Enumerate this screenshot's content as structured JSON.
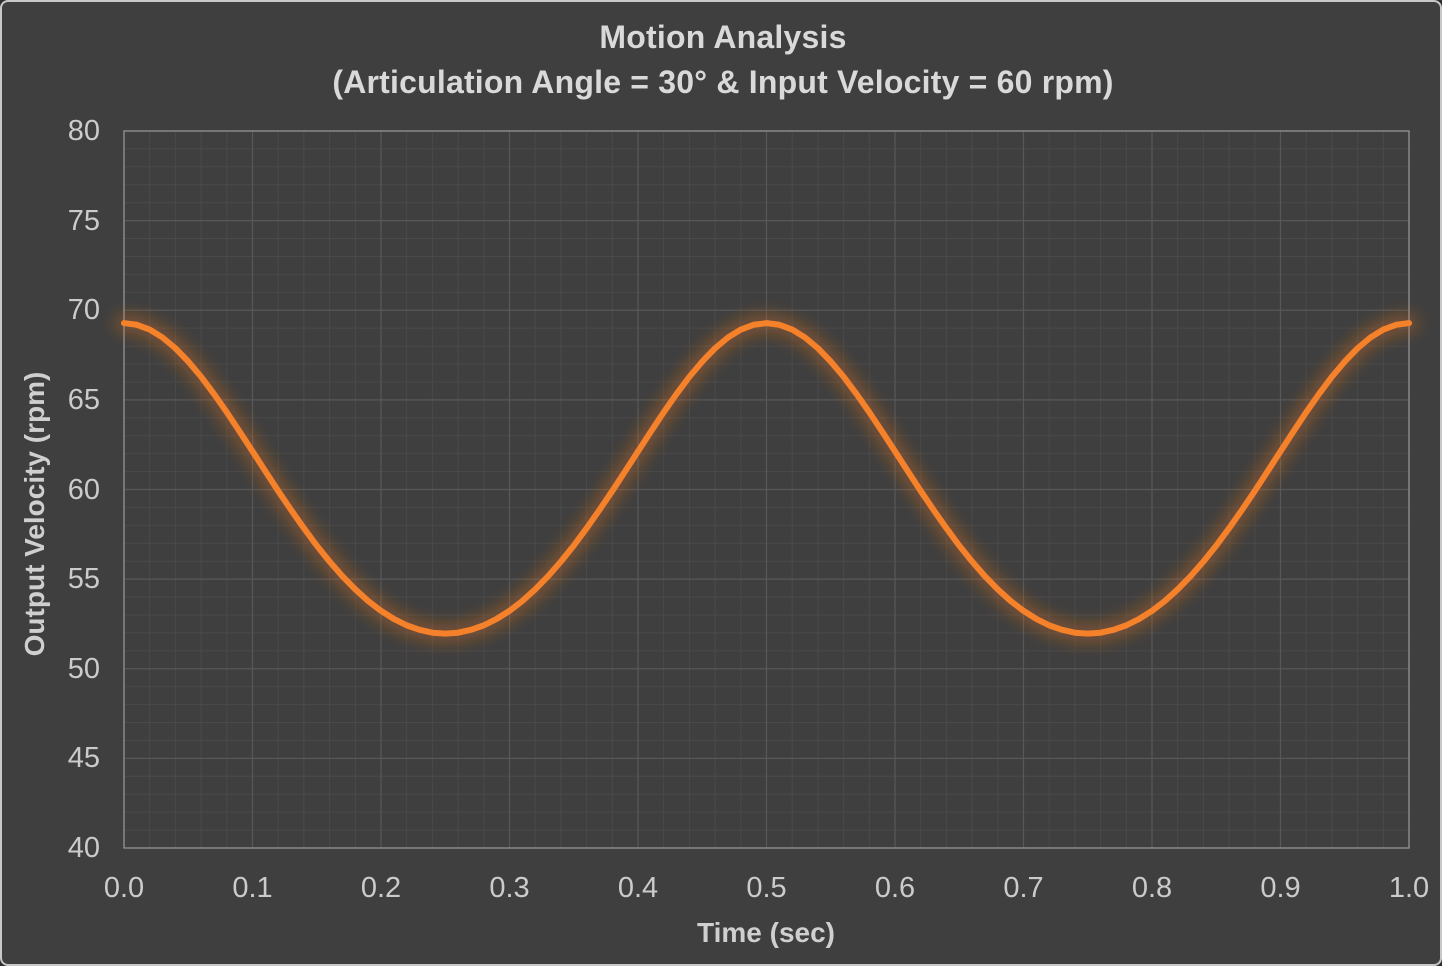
{
  "frame": {
    "background": "#3F3F3F",
    "border_color": "#C8C8C8"
  },
  "colors": {
    "background": "#3F3F3F",
    "plot_border": "#8F8F8F",
    "grid_major": "#585858",
    "grid_minor": "#4A4A4A",
    "tick_text": "#CBCBCB",
    "title_text": "#D9D9D9",
    "curve": "#F5822B",
    "curve_glow": "#DD6E1B"
  },
  "chart_data": {
    "type": "line",
    "title": "Motion Analysis",
    "subtitle": "(Articulation Angle = 30° & Input Velocity = 60 rpm)",
    "xlabel": "Time (sec)",
    "ylabel": "Output Velocity (rpm)",
    "xlim": [
      0.0,
      1.0
    ],
    "ylim": [
      40,
      80
    ],
    "x_tick_labels": [
      "0.0",
      "0.1",
      "0.2",
      "0.3",
      "0.4",
      "0.5",
      "0.6",
      "0.7",
      "0.8",
      "0.9",
      "1.0"
    ],
    "y_tick_labels": [
      "80",
      "75",
      "70",
      "65",
      "60",
      "55",
      "50",
      "45",
      "40"
    ],
    "x_major_step": 0.1,
    "x_minor_step": 0.02,
    "y_major_step": 5,
    "y_minor_step": 1,
    "grid": "major+minor",
    "legend_position": "none",
    "series": [
      {
        "name": "Output Velocity",
        "color": "#F5822B",
        "x_start": 0.0,
        "x_step": 0.01,
        "values": [
          69.28,
          69.19,
          68.92,
          68.48,
          67.88,
          67.14,
          66.29,
          65.33,
          64.31,
          63.23,
          62.13,
          61.02,
          59.92,
          58.86,
          57.84,
          56.87,
          55.98,
          55.16,
          54.43,
          53.78,
          53.23,
          52.78,
          52.42,
          52.17,
          52.01,
          51.96,
          52.01,
          52.17,
          52.42,
          52.78,
          53.23,
          53.78,
          54.43,
          55.16,
          55.98,
          56.87,
          57.84,
          58.86,
          59.92,
          61.02,
          62.13,
          63.23,
          64.31,
          65.33,
          66.29,
          67.14,
          67.88,
          68.48,
          68.92,
          69.19,
          69.28,
          69.19,
          68.92,
          68.48,
          67.88,
          67.14,
          66.29,
          65.33,
          64.31,
          63.23,
          62.13,
          61.02,
          59.92,
          58.86,
          57.84,
          56.87,
          55.98,
          55.16,
          54.43,
          53.78,
          53.23,
          52.78,
          52.42,
          52.17,
          52.01,
          51.96,
          52.01,
          52.17,
          52.42,
          52.78,
          53.23,
          53.78,
          54.43,
          55.16,
          55.98,
          56.87,
          57.84,
          58.86,
          59.92,
          61.02,
          62.13,
          63.23,
          64.31,
          65.33,
          66.29,
          67.14,
          67.88,
          68.48,
          68.92,
          69.19,
          69.28
        ]
      }
    ]
  }
}
